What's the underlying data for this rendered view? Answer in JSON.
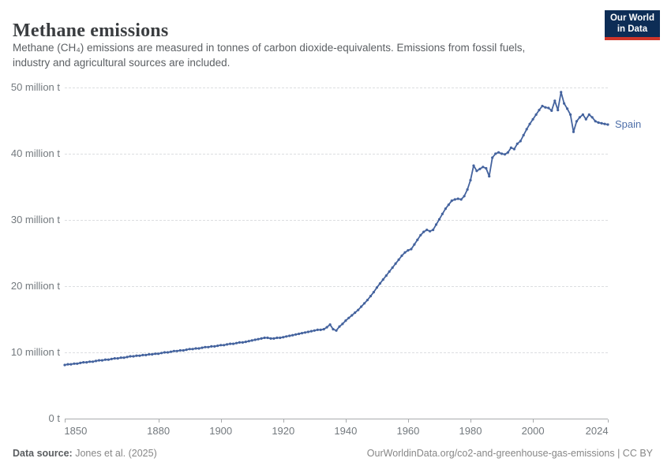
{
  "header": {
    "title": "Methane emissions",
    "subtitle_line1": "Methane (CH₄) emissions are measured in tonnes of carbon dioxide-equivalents. Emissions from fossil fuels,",
    "subtitle_line2": "industry and agricultural sources are included.",
    "logo": {
      "line1": "Our World",
      "line2": "in Data",
      "bg_color": "#0d2d56",
      "accent_color": "#cf3529"
    }
  },
  "footer": {
    "source_label": "Data source:",
    "source_value": " Jones et al. (2025)",
    "right_text": "OurWorldinData.org/co2-and-greenhouse-gas-emissions | CC BY"
  },
  "chart_data": {
    "type": "line",
    "title": "Methane emissions",
    "ylabel": "",
    "xlabel": "",
    "unit": "million tonnes of CO2-equivalents",
    "xlim": [
      1850,
      2024
    ],
    "ylim": [
      0,
      50
    ],
    "grid": "horizontal-dashed",
    "legend_position": "end-of-line",
    "y_ticks": [
      {
        "value": 0,
        "label": "0 t"
      },
      {
        "value": 10,
        "label": "10 million t"
      },
      {
        "value": 20,
        "label": "20 million t"
      },
      {
        "value": 30,
        "label": "30 million t"
      },
      {
        "value": 40,
        "label": "40 million t"
      },
      {
        "value": 50,
        "label": "50 million t"
      }
    ],
    "x_ticks": [
      {
        "year": 1850,
        "label": "1850"
      },
      {
        "year": 1880,
        "label": "1880"
      },
      {
        "year": 1900,
        "label": "1900"
      },
      {
        "year": 1920,
        "label": "1920"
      },
      {
        "year": 1940,
        "label": "1940"
      },
      {
        "year": 1960,
        "label": "1960"
      },
      {
        "year": 1980,
        "label": "1980"
      },
      {
        "year": 2000,
        "label": "2000"
      },
      {
        "year": 2024,
        "label": "2024"
      }
    ],
    "series": [
      {
        "name": "Spain",
        "color": "#44639e",
        "label_color": "#4d6ea8",
        "points": [
          [
            1850,
            8.1
          ],
          [
            1851,
            8.2
          ],
          [
            1852,
            8.2
          ],
          [
            1853,
            8.3
          ],
          [
            1854,
            8.3
          ],
          [
            1855,
            8.4
          ],
          [
            1856,
            8.5
          ],
          [
            1857,
            8.5
          ],
          [
            1858,
            8.6
          ],
          [
            1859,
            8.6
          ],
          [
            1860,
            8.7
          ],
          [
            1861,
            8.8
          ],
          [
            1862,
            8.8
          ],
          [
            1863,
            8.9
          ],
          [
            1864,
            8.9
          ],
          [
            1865,
            9.0
          ],
          [
            1866,
            9.1
          ],
          [
            1867,
            9.1
          ],
          [
            1868,
            9.2
          ],
          [
            1869,
            9.2
          ],
          [
            1870,
            9.3
          ],
          [
            1871,
            9.4
          ],
          [
            1872,
            9.4
          ],
          [
            1873,
            9.5
          ],
          [
            1874,
            9.5
          ],
          [
            1875,
            9.6
          ],
          [
            1876,
            9.6
          ],
          [
            1877,
            9.7
          ],
          [
            1878,
            9.7
          ],
          [
            1879,
            9.8
          ],
          [
            1880,
            9.8
          ],
          [
            1881,
            9.9
          ],
          [
            1882,
            10.0
          ],
          [
            1883,
            10.0
          ],
          [
            1884,
            10.1
          ],
          [
            1885,
            10.2
          ],
          [
            1886,
            10.2
          ],
          [
            1887,
            10.3
          ],
          [
            1888,
            10.3
          ],
          [
            1889,
            10.4
          ],
          [
            1890,
            10.5
          ],
          [
            1891,
            10.5
          ],
          [
            1892,
            10.6
          ],
          [
            1893,
            10.6
          ],
          [
            1894,
            10.7
          ],
          [
            1895,
            10.8
          ],
          [
            1896,
            10.8
          ],
          [
            1897,
            10.9
          ],
          [
            1898,
            10.9
          ],
          [
            1899,
            11.0
          ],
          [
            1900,
            11.1
          ],
          [
            1901,
            11.1
          ],
          [
            1902,
            11.2
          ],
          [
            1903,
            11.3
          ],
          [
            1904,
            11.3
          ],
          [
            1905,
            11.4
          ],
          [
            1906,
            11.5
          ],
          [
            1907,
            11.5
          ],
          [
            1908,
            11.6
          ],
          [
            1909,
            11.7
          ],
          [
            1910,
            11.8
          ],
          [
            1911,
            11.9
          ],
          [
            1912,
            12.0
          ],
          [
            1913,
            12.1
          ],
          [
            1914,
            12.2
          ],
          [
            1915,
            12.2
          ],
          [
            1916,
            12.1
          ],
          [
            1917,
            12.1
          ],
          [
            1918,
            12.2
          ],
          [
            1919,
            12.2
          ],
          [
            1920,
            12.3
          ],
          [
            1921,
            12.4
          ],
          [
            1922,
            12.5
          ],
          [
            1923,
            12.6
          ],
          [
            1924,
            12.7
          ],
          [
            1925,
            12.8
          ],
          [
            1926,
            12.9
          ],
          [
            1927,
            13.0
          ],
          [
            1928,
            13.1
          ],
          [
            1929,
            13.2
          ],
          [
            1930,
            13.3
          ],
          [
            1931,
            13.4
          ],
          [
            1932,
            13.4
          ],
          [
            1933,
            13.5
          ],
          [
            1934,
            13.8
          ],
          [
            1935,
            14.2
          ],
          [
            1936,
            13.5
          ],
          [
            1937,
            13.3
          ],
          [
            1938,
            13.9
          ],
          [
            1939,
            14.3
          ],
          [
            1940,
            14.8
          ],
          [
            1941,
            15.2
          ],
          [
            1942,
            15.6
          ],
          [
            1943,
            16.0
          ],
          [
            1944,
            16.4
          ],
          [
            1945,
            16.9
          ],
          [
            1946,
            17.4
          ],
          [
            1947,
            17.9
          ],
          [
            1948,
            18.5
          ],
          [
            1949,
            19.1
          ],
          [
            1950,
            19.8
          ],
          [
            1951,
            20.4
          ],
          [
            1952,
            21.0
          ],
          [
            1953,
            21.6
          ],
          [
            1954,
            22.2
          ],
          [
            1955,
            22.8
          ],
          [
            1956,
            23.4
          ],
          [
            1957,
            24.0
          ],
          [
            1958,
            24.6
          ],
          [
            1959,
            25.1
          ],
          [
            1960,
            25.4
          ],
          [
            1961,
            25.6
          ],
          [
            1962,
            26.3
          ],
          [
            1963,
            27.0
          ],
          [
            1964,
            27.7
          ],
          [
            1965,
            28.2
          ],
          [
            1966,
            28.5
          ],
          [
            1967,
            28.3
          ],
          [
            1968,
            28.5
          ],
          [
            1969,
            29.3
          ],
          [
            1970,
            30.1
          ],
          [
            1971,
            30.9
          ],
          [
            1972,
            31.7
          ],
          [
            1973,
            32.3
          ],
          [
            1974,
            32.9
          ],
          [
            1975,
            33.1
          ],
          [
            1976,
            33.2
          ],
          [
            1977,
            33.1
          ],
          [
            1978,
            33.6
          ],
          [
            1979,
            34.6
          ],
          [
            1980,
            36.0
          ],
          [
            1981,
            38.2
          ],
          [
            1982,
            37.4
          ],
          [
            1983,
            37.7
          ],
          [
            1984,
            38.0
          ],
          [
            1985,
            37.8
          ],
          [
            1986,
            36.6
          ],
          [
            1987,
            39.4
          ],
          [
            1988,
            40.0
          ],
          [
            1989,
            40.2
          ],
          [
            1990,
            40.0
          ],
          [
            1991,
            39.9
          ],
          [
            1992,
            40.2
          ],
          [
            1993,
            40.9
          ],
          [
            1994,
            40.7
          ],
          [
            1995,
            41.5
          ],
          [
            1996,
            41.9
          ],
          [
            1997,
            42.8
          ],
          [
            1998,
            43.7
          ],
          [
            1999,
            44.5
          ],
          [
            2000,
            45.2
          ],
          [
            2001,
            45.9
          ],
          [
            2002,
            46.6
          ],
          [
            2003,
            47.2
          ],
          [
            2004,
            47.0
          ],
          [
            2005,
            46.9
          ],
          [
            2006,
            46.5
          ],
          [
            2007,
            48.0
          ],
          [
            2008,
            46.6
          ],
          [
            2009,
            49.3
          ],
          [
            2010,
            47.6
          ],
          [
            2011,
            46.8
          ],
          [
            2012,
            45.9
          ],
          [
            2013,
            43.3
          ],
          [
            2014,
            44.9
          ],
          [
            2015,
            45.5
          ],
          [
            2016,
            45.9
          ],
          [
            2017,
            45.2
          ],
          [
            2018,
            45.9
          ],
          [
            2019,
            45.5
          ],
          [
            2020,
            44.9
          ],
          [
            2021,
            44.7
          ],
          [
            2022,
            44.6
          ],
          [
            2023,
            44.5
          ],
          [
            2024,
            44.4
          ]
        ]
      }
    ]
  }
}
